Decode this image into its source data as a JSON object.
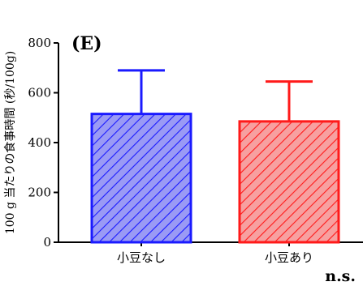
{
  "chart_data": {
    "type": "bar",
    "panel_label": "(E)",
    "ylabel": "100 g 当たりの食事時間 (秒/100g)",
    "xlabel": "",
    "categories": [
      "小豆なし",
      "小豆あり"
    ],
    "values": [
      515,
      485
    ],
    "error_upper": [
      690,
      645
    ],
    "ylim": [
      0,
      800
    ],
    "yticks": [
      0,
      200,
      400,
      600,
      800
    ],
    "significance": "n.s.",
    "grid": false,
    "legend": "none",
    "bar_style": "diagonal-hatch",
    "colors": {
      "bar_strokes": [
        "#1a1aff",
        "#ff1a1a"
      ],
      "bar_fills": [
        "#9a9af5",
        "#f7a0a0"
      ],
      "axis": "#000000"
    }
  }
}
